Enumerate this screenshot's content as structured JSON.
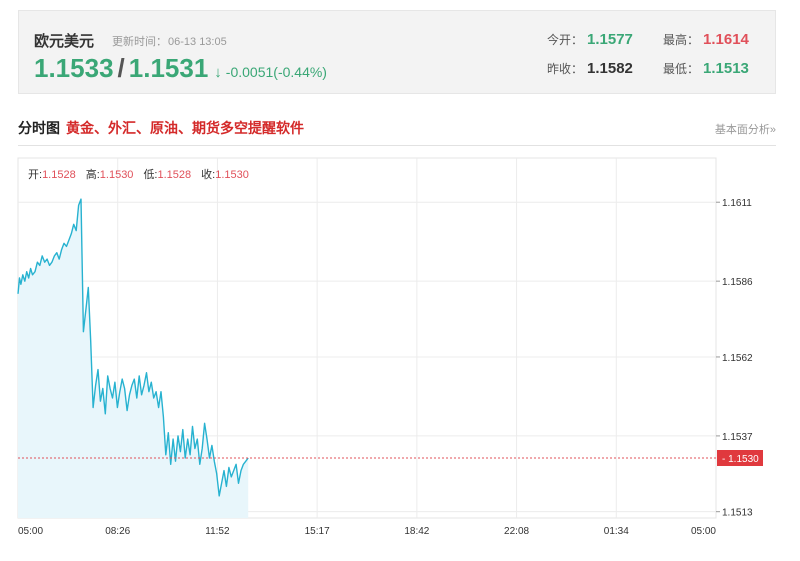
{
  "quote": {
    "name": "欧元美元",
    "update_label": "更新时间：",
    "update_time": "06-13 13:05",
    "bid": "1.1533",
    "ask": "1.1531",
    "arrow": "↓",
    "change": "-0.0051(-0.44%)",
    "open_label": "今开：",
    "open": "1.1577",
    "high_label": "最高：",
    "high": "1.1614",
    "prev_close_label": "昨收：",
    "prev_close": "1.1582",
    "low_label": "最低：",
    "low": "1.1513"
  },
  "section": {
    "title": "分时图",
    "promo": "黄金、外汇、原油、期货多空提醒软件",
    "fundamental_link": "基本面分析»"
  },
  "ohlc": {
    "open_label": "开:",
    "open": "1.1528",
    "high_label": "高:",
    "high": "1.1530",
    "low_label": "低:",
    "low": "1.1528",
    "close_label": "收:",
    "close": "1.1530"
  },
  "colors": {
    "up_green": "#3aa776",
    "down_red": "#e0505a",
    "line": "#27b2d0",
    "area": "#e8f6fb"
  },
  "chart_data": {
    "type": "area",
    "x_tick_labels": [
      "05:00",
      "08:26",
      "11:52",
      "15:17",
      "18:42",
      "22:08",
      "01:34",
      "05:00"
    ],
    "y_tick_labels": [
      "1.1611",
      "1.1586",
      "1.1562",
      "1.1537",
      "1.1513"
    ],
    "y_ticks": [
      1.1611,
      1.1586,
      1.1562,
      1.1537,
      1.1513
    ],
    "ylim": [
      1.1511,
      1.1625
    ],
    "current_price": 1.153,
    "current_price_label": "1.1530",
    "x_unit": "minutes from 05:00",
    "x_range": [
      0,
      1440
    ],
    "grid": true,
    "series": [
      {
        "x": [
          0,
          3,
          6,
          10,
          14,
          18,
          22,
          26,
          30,
          35,
          40,
          45,
          50,
          55,
          60,
          65,
          70,
          75,
          80,
          85,
          90,
          95,
          100,
          105,
          110,
          115,
          120,
          125,
          130,
          135,
          140,
          145,
          150,
          155,
          160,
          165,
          170,
          175,
          180,
          185,
          190,
          195,
          200,
          205,
          210,
          215,
          220,
          225,
          230,
          235,
          240,
          245,
          250,
          255,
          260,
          265,
          270,
          275,
          280,
          285,
          290,
          295,
          300,
          305,
          310,
          315,
          320,
          325,
          330,
          335,
          340,
          345,
          350,
          355,
          360,
          365,
          370,
          375,
          380,
          385,
          390,
          395,
          400,
          405,
          410,
          415,
          420,
          425,
          430,
          435,
          440,
          445,
          450,
          455,
          460,
          465,
          470,
          475
        ],
        "y": [
          1.1582,
          1.1587,
          1.1585,
          1.1588,
          1.1586,
          1.1589,
          1.1587,
          1.159,
          1.1588,
          1.1589,
          1.1592,
          1.1591,
          1.1594,
          1.1592,
          1.1593,
          1.1591,
          1.1592,
          1.1594,
          1.1595,
          1.1593,
          1.1596,
          1.1598,
          1.1597,
          1.1599,
          1.1601,
          1.1604,
          1.1602,
          1.161,
          1.1612,
          1.157,
          1.1577,
          1.1584,
          1.1567,
          1.1546,
          1.1553,
          1.1558,
          1.1548,
          1.1552,
          1.1544,
          1.1556,
          1.1552,
          1.1549,
          1.1554,
          1.1546,
          1.1551,
          1.1555,
          1.1552,
          1.1545,
          1.155,
          1.1553,
          1.1555,
          1.1549,
          1.1556,
          1.155,
          1.1553,
          1.1557,
          1.1551,
          1.1554,
          1.1549,
          1.1551,
          1.1546,
          1.1551,
          1.1543,
          1.1531,
          1.1538,
          1.1528,
          1.1536,
          1.1529,
          1.1537,
          1.1532,
          1.1539,
          1.153,
          1.1536,
          1.1531,
          1.154,
          1.1533,
          1.1536,
          1.1528,
          1.1533,
          1.1541,
          1.1536,
          1.153,
          1.1534,
          1.1529,
          1.1525,
          1.1518,
          1.1522,
          1.1526,
          1.1521,
          1.1527,
          1.1524,
          1.1526,
          1.1528,
          1.1522,
          1.1526,
          1.1528,
          1.1529,
          1.153
        ]
      }
    ]
  }
}
